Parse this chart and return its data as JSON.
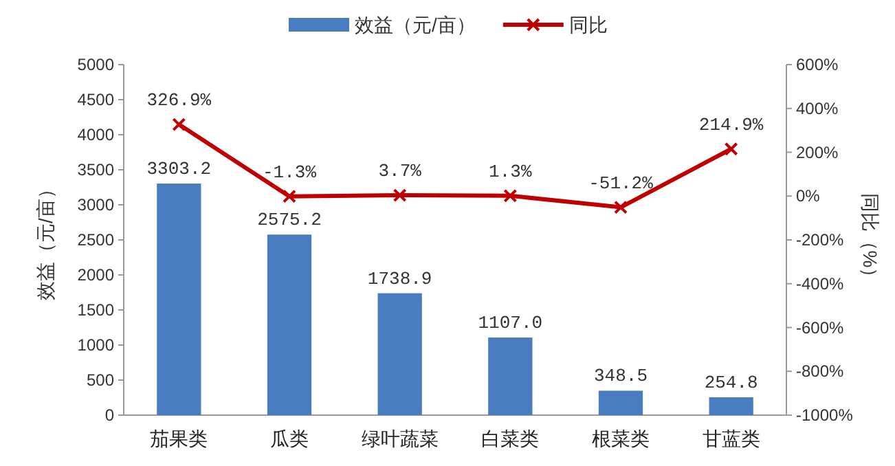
{
  "chart_data": {
    "type": "bar",
    "ylabel": "效益（元/亩）",
    "y2label": "同比（%）",
    "categories": [
      "茄果类",
      "瓜类",
      "绿叶蔬菜",
      "白菜类",
      "根菜类",
      "甘蓝类"
    ],
    "series": [
      {
        "name": "效益（元/亩）",
        "color": "#4a7cc0",
        "values": [
          3303.2,
          2575.2,
          1738.9,
          1107.0,
          348.5,
          254.8
        ],
        "value_labels": [
          "3303.2",
          "2575.2",
          "1738.9",
          "1107.0",
          "348.5",
          "254.8"
        ]
      },
      {
        "name": "同比",
        "type": "line",
        "axis": "y2",
        "color": "#c00000",
        "marker": "cross",
        "values": [
          326.9,
          -1.3,
          3.7,
          1.3,
          -51.2,
          214.9
        ],
        "value_labels": [
          "326.9%",
          "-1.3%",
          "3.7%",
          "1.3%",
          "-51.2%",
          "214.9%"
        ]
      }
    ],
    "ylim": [
      0,
      5000
    ],
    "yticks": [
      0,
      500,
      1000,
      1500,
      2000,
      2500,
      3000,
      3500,
      4000,
      4500,
      5000
    ],
    "y2lim": [
      -1000,
      600
    ],
    "y2ticks": [
      {
        "value": -1000,
        "label": "-1000%"
      },
      {
        "value": -800,
        "label": "-800%"
      },
      {
        "value": -600,
        "label": "-600%"
      },
      {
        "value": -400,
        "label": "-400%"
      },
      {
        "value": -200,
        "label": "-200%"
      },
      {
        "value": 0,
        "label": "0%"
      },
      {
        "value": 200,
        "label": "200%"
      },
      {
        "value": 400,
        "label": "400%"
      },
      {
        "value": 600,
        "label": "600%"
      }
    ],
    "legend": "top",
    "grid": false
  }
}
